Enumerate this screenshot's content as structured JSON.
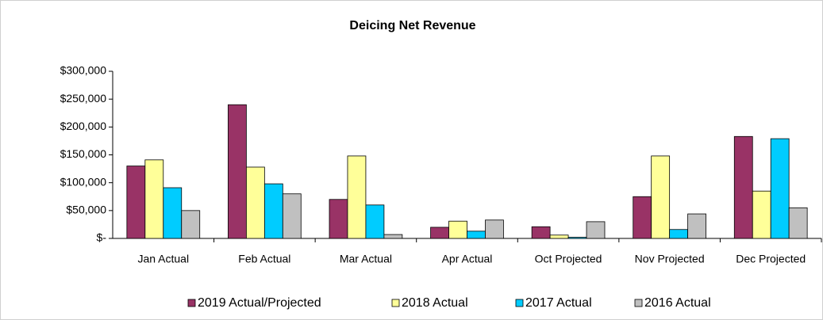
{
  "chart_data": {
    "type": "bar",
    "title": "Deicing Net Revenue",
    "categories": [
      "Jan Actual",
      "Feb Actual",
      "Mar Actual",
      "Apr Actual",
      "Oct Projected",
      "Nov Projected",
      "Dec Projected"
    ],
    "series": [
      {
        "name": "2019 Actual/Projected",
        "color": "#993366",
        "values": [
          130000,
          240000,
          70000,
          20000,
          21000,
          75000,
          183000
        ]
      },
      {
        "name": "2018 Actual",
        "color": "#ffff99",
        "values": [
          141000,
          128000,
          148000,
          31000,
          6000,
          148000,
          85000
        ]
      },
      {
        "name": "2017 Actual",
        "color": "#00ccff",
        "values": [
          91000,
          98000,
          60000,
          13000,
          2000,
          16000,
          179000
        ]
      },
      {
        "name": "2016 Actual",
        "color": "#c0c0c0",
        "values": [
          50000,
          80000,
          7000,
          33000,
          30000,
          44000,
          55000
        ]
      }
    ],
    "ylim": [
      0,
      300000
    ],
    "yticks": [
      {
        "value": 0,
        "label": "$-"
      },
      {
        "value": 50000,
        "label": "$50,000"
      },
      {
        "value": 100000,
        "label": "$100,000"
      },
      {
        "value": 150000,
        "label": "$150,000"
      },
      {
        "value": 200000,
        "label": "$200,000"
      },
      {
        "value": 250000,
        "label": "$250,000"
      },
      {
        "value": 300000,
        "label": "$300,000"
      }
    ],
    "legend": "bottom"
  }
}
